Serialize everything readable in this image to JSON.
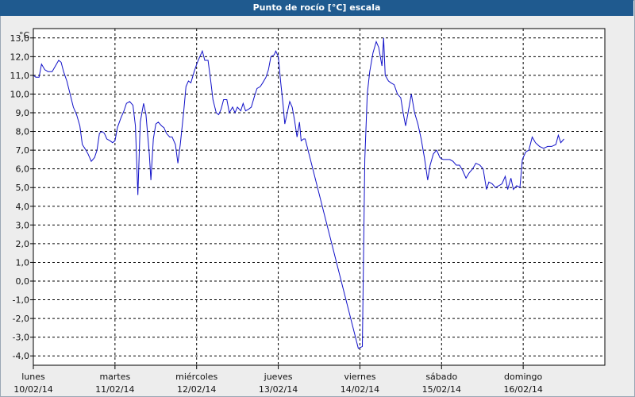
{
  "window": {
    "title": "Punto de rocío [°C] escala"
  },
  "colors": {
    "titlebar": "#1f5a8f",
    "line": "#1010c8",
    "plot_bg": "#ffffff",
    "grid": "#000000"
  },
  "chart_data": {
    "type": "line",
    "title": "Punto de rocío [°C] escala",
    "ylabel": "°C",
    "xlabel": "",
    "ylim": [
      -4.5,
      13.5
    ],
    "yticks": [
      "13,0",
      "12,0",
      "11,0",
      "10,0",
      "9,0",
      "8,0",
      "7,0",
      "6,0",
      "5,0",
      "4,0",
      "3,0",
      "2,0",
      "1,0",
      "0,0",
      "-1,0",
      "-2,0",
      "-3,0",
      "-4,0"
    ],
    "ytick_values": [
      13,
      12,
      11,
      10,
      9,
      8,
      7,
      6,
      5,
      4,
      3,
      2,
      1,
      0,
      -1,
      -2,
      -3,
      -4
    ],
    "x_days": [
      {
        "day": "lunes",
        "date": "10/02/14"
      },
      {
        "day": "martes",
        "date": "11/02/14"
      },
      {
        "day": "miércoles",
        "date": "12/02/14"
      },
      {
        "day": "jueves",
        "date": "13/02/14"
      },
      {
        "day": "viernes",
        "date": "14/02/14"
      },
      {
        "day": "sábado",
        "date": "15/02/14"
      },
      {
        "day": "domingo",
        "date": "16/02/14"
      }
    ],
    "xlim_days": [
      0,
      7
    ],
    "grid": true,
    "series": [
      {
        "values": [
          [
            0.0,
            11.0
          ],
          [
            0.03,
            10.9
          ],
          [
            0.07,
            10.9
          ],
          [
            0.1,
            11.6
          ],
          [
            0.14,
            11.3
          ],
          [
            0.18,
            11.2
          ],
          [
            0.23,
            11.2
          ],
          [
            0.27,
            11.5
          ],
          [
            0.31,
            11.8
          ],
          [
            0.34,
            11.7
          ],
          [
            0.37,
            11.2
          ],
          [
            0.41,
            10.7
          ],
          [
            0.45,
            10.0
          ],
          [
            0.49,
            9.3
          ],
          [
            0.53,
            8.9
          ],
          [
            0.57,
            8.3
          ],
          [
            0.6,
            7.3
          ],
          [
            0.63,
            7.1
          ],
          [
            0.67,
            6.8
          ],
          [
            0.71,
            6.4
          ],
          [
            0.75,
            6.6
          ],
          [
            0.78,
            7.0
          ],
          [
            0.81,
            7.9
          ],
          [
            0.84,
            8.0
          ],
          [
            0.87,
            7.9
          ],
          [
            0.9,
            7.6
          ],
          [
            0.94,
            7.5
          ],
          [
            0.97,
            7.4
          ],
          [
            1.0,
            7.5
          ],
          [
            1.03,
            8.2
          ],
          [
            1.07,
            8.7
          ],
          [
            1.11,
            9.1
          ],
          [
            1.14,
            9.5
          ],
          [
            1.18,
            9.6
          ],
          [
            1.22,
            9.4
          ],
          [
            1.25,
            8.3
          ],
          [
            1.28,
            4.6
          ],
          [
            1.31,
            8.5
          ],
          [
            1.35,
            9.5
          ],
          [
            1.38,
            8.9
          ],
          [
            1.42,
            6.8
          ],
          [
            1.44,
            5.4
          ],
          [
            1.47,
            7.6
          ],
          [
            1.5,
            8.4
          ],
          [
            1.53,
            8.5
          ],
          [
            1.57,
            8.3
          ],
          [
            1.6,
            8.2
          ],
          [
            1.63,
            7.9
          ],
          [
            1.67,
            7.7
          ],
          [
            1.7,
            7.7
          ],
          [
            1.74,
            7.3
          ],
          [
            1.77,
            6.3
          ],
          [
            1.8,
            7.3
          ],
          [
            1.84,
            9.0
          ],
          [
            1.87,
            10.4
          ],
          [
            1.9,
            10.7
          ],
          [
            1.93,
            10.6
          ],
          [
            1.97,
            11.2
          ],
          [
            2.01,
            11.7
          ],
          [
            2.04,
            12.0
          ],
          [
            2.07,
            12.3
          ],
          [
            2.1,
            11.8
          ],
          [
            2.14,
            11.8
          ],
          [
            2.17,
            10.8
          ],
          [
            2.2,
            9.7
          ],
          [
            2.24,
            9.0
          ],
          [
            2.27,
            8.9
          ],
          [
            2.3,
            9.2
          ],
          [
            2.33,
            9.7
          ],
          [
            2.37,
            9.7
          ],
          [
            2.4,
            9.0
          ],
          [
            2.44,
            9.3
          ],
          [
            2.47,
            9.0
          ],
          [
            2.5,
            9.3
          ],
          [
            2.54,
            9.1
          ],
          [
            2.57,
            9.5
          ],
          [
            2.6,
            9.1
          ],
          [
            2.64,
            9.2
          ],
          [
            2.67,
            9.3
          ],
          [
            2.71,
            9.9
          ],
          [
            2.74,
            10.3
          ],
          [
            2.78,
            10.4
          ],
          [
            2.81,
            10.6
          ],
          [
            2.85,
            10.9
          ],
          [
            2.88,
            11.3
          ],
          [
            2.91,
            12.0
          ],
          [
            2.95,
            12.1
          ],
          [
            2.97,
            12.3
          ],
          [
            3.0,
            12.0
          ],
          [
            3.03,
            10.6
          ],
          [
            3.06,
            9.4
          ],
          [
            3.08,
            8.4
          ],
          [
            3.11,
            9.0
          ],
          [
            3.14,
            9.6
          ],
          [
            3.17,
            9.3
          ],
          [
            3.2,
            8.6
          ],
          [
            3.23,
            7.7
          ],
          [
            3.26,
            8.5
          ],
          [
            3.28,
            7.5
          ],
          [
            3.31,
            7.6
          ],
          [
            3.33,
            7.6
          ],
          [
            3.98,
            -3.6
          ],
          [
            4.03,
            -3.5
          ],
          [
            4.06,
            6.5
          ],
          [
            4.09,
            10.0
          ],
          [
            4.12,
            11.2
          ],
          [
            4.16,
            12.2
          ],
          [
            4.2,
            12.8
          ],
          [
            4.23,
            12.5
          ],
          [
            4.27,
            11.5
          ],
          [
            4.29,
            13.0
          ],
          [
            4.31,
            11.0
          ],
          [
            4.35,
            10.7
          ],
          [
            4.38,
            10.6
          ],
          [
            4.42,
            10.5
          ],
          [
            4.46,
            10.0
          ],
          [
            4.5,
            9.8
          ],
          [
            4.53,
            9.0
          ],
          [
            4.56,
            8.3
          ],
          [
            4.59,
            9.0
          ],
          [
            4.63,
            10.0
          ],
          [
            4.67,
            9.0
          ],
          [
            4.71,
            8.4
          ],
          [
            4.75,
            7.6
          ],
          [
            4.79,
            6.6
          ],
          [
            4.83,
            5.4
          ],
          [
            4.86,
            6.2
          ],
          [
            4.9,
            6.8
          ],
          [
            4.94,
            7.0
          ],
          [
            4.98,
            6.6
          ],
          [
            5.02,
            6.5
          ],
          [
            5.06,
            6.5
          ],
          [
            5.1,
            6.5
          ],
          [
            5.14,
            6.4
          ],
          [
            5.18,
            6.2
          ],
          [
            5.22,
            6.2
          ],
          [
            5.26,
            5.9
          ],
          [
            5.3,
            5.5
          ],
          [
            5.34,
            5.8
          ],
          [
            5.38,
            6.0
          ],
          [
            5.42,
            6.3
          ],
          [
            5.47,
            6.2
          ],
          [
            5.51,
            6.0
          ],
          [
            5.55,
            4.9
          ],
          [
            5.58,
            5.3
          ],
          [
            5.62,
            5.2
          ],
          [
            5.66,
            5.0
          ],
          [
            5.7,
            5.1
          ],
          [
            5.74,
            5.2
          ],
          [
            5.78,
            5.6
          ],
          [
            5.81,
            4.9
          ],
          [
            5.85,
            5.5
          ],
          [
            5.88,
            4.9
          ],
          [
            5.92,
            5.1
          ],
          [
            5.96,
            5.0
          ],
          [
            5.99,
            6.5
          ],
          [
            6.03,
            6.9
          ],
          [
            6.07,
            7.0
          ],
          [
            6.11,
            7.7
          ],
          [
            6.15,
            7.4
          ],
          [
            6.2,
            7.2
          ],
          [
            6.25,
            7.1
          ],
          [
            6.3,
            7.2
          ],
          [
            6.35,
            7.2
          ],
          [
            6.4,
            7.3
          ],
          [
            6.43,
            7.8
          ],
          [
            6.46,
            7.4
          ],
          [
            6.5,
            7.6
          ]
        ]
      }
    ]
  }
}
